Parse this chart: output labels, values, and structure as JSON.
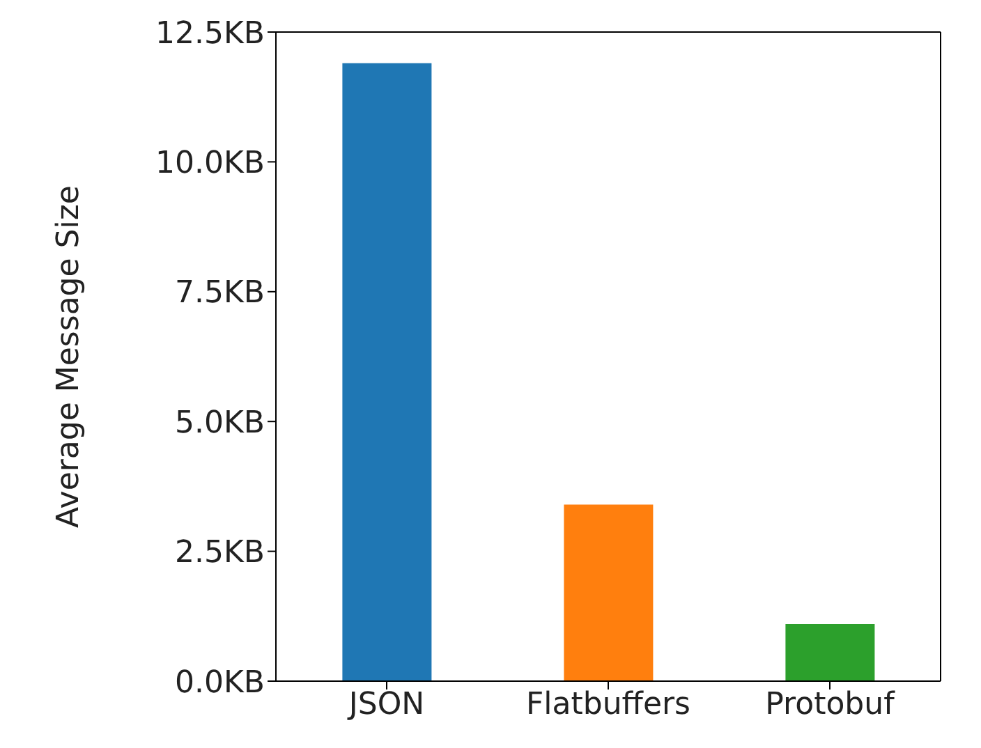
{
  "chart_data": {
    "type": "bar",
    "ylabel": "Average Message Size",
    "categories": [
      "JSON",
      "Flatbuffers",
      "Protobuf"
    ],
    "values": [
      11.9,
      3.4,
      1.1
    ],
    "colors": [
      "#1f77b4",
      "#ff7f0e",
      "#2ca02c"
    ],
    "ylim": [
      0,
      12.5
    ],
    "yticks": [
      {
        "value": 0,
        "label": "0.0KB"
      },
      {
        "value": 2.5,
        "label": "2.5KB"
      },
      {
        "value": 5,
        "label": "5.0KB"
      },
      {
        "value": 7.5,
        "label": "7.5KB"
      },
      {
        "value": 10,
        "label": "10.0KB"
      },
      {
        "value": 12.5,
        "label": "12.5KB"
      }
    ],
    "grid": false,
    "legend": false
  }
}
